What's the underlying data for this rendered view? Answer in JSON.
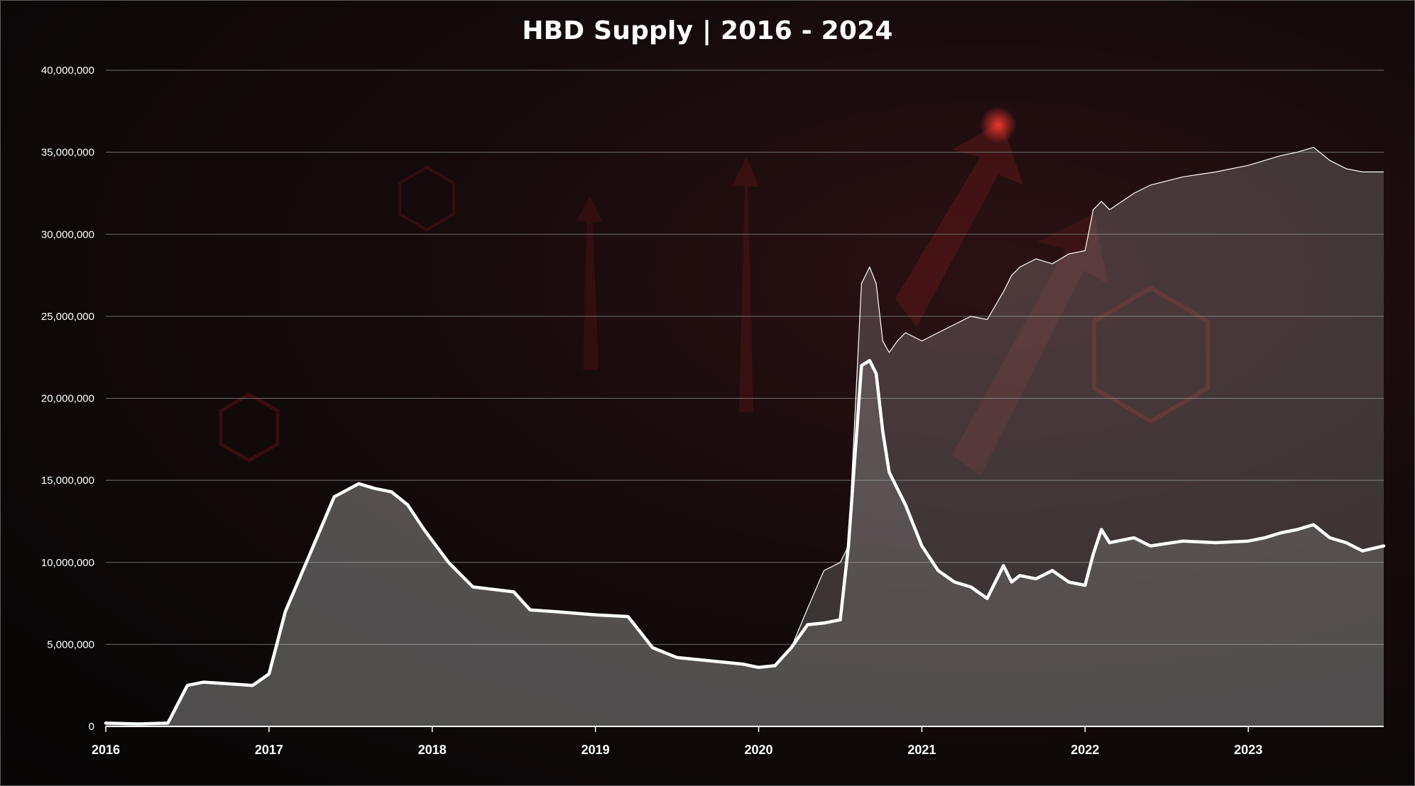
{
  "chart_data": {
    "type": "area",
    "title": "HBD Supply | 2016 - 2024",
    "xlabel": "",
    "ylabel": "",
    "ylim": [
      0,
      40000000
    ],
    "xlim": [
      2016.0,
      2023.83
    ],
    "y_ticks": [
      "0",
      "5,000,000",
      "10,000,000",
      "15,000,000",
      "20,000,000",
      "25,000,000",
      "30,000,000",
      "35,000,000",
      "40,000,000"
    ],
    "y_tick_values": [
      0,
      5000000,
      10000000,
      15000000,
      20000000,
      25000000,
      30000000,
      35000000,
      40000000
    ],
    "x_ticks": [
      "2016",
      "2017",
      "2018",
      "2019",
      "2020",
      "2021",
      "2022",
      "2023"
    ],
    "x_tick_values": [
      2016,
      2017,
      2018,
      2019,
      2020,
      2021,
      2022,
      2023
    ],
    "grid": true,
    "colors": {
      "series_line": "#ffffff",
      "area_fill": "#cfcfcf",
      "grid": "#6e6e6e",
      "background": "#120809"
    },
    "series": [
      {
        "style": "thin-line-area",
        "x": [
          2016.0,
          2016.2,
          2016.38,
          2016.5,
          2016.6,
          2016.75,
          2016.9,
          2017.0,
          2017.1,
          2017.25,
          2017.4,
          2017.55,
          2017.65,
          2017.75,
          2017.85,
          2017.95,
          2018.1,
          2018.25,
          2018.5,
          2018.6,
          2018.75,
          2019.0,
          2019.2,
          2019.35,
          2019.5,
          2019.7,
          2019.9,
          2020.0,
          2020.1,
          2020.2,
          2020.3,
          2020.4,
          2020.5,
          2020.55,
          2020.63,
          2020.68,
          2020.72,
          2020.76,
          2020.8,
          2020.85,
          2020.9,
          2021.0,
          2021.1,
          2021.2,
          2021.3,
          2021.4,
          2021.5,
          2021.55,
          2021.6,
          2021.7,
          2021.8,
          2021.9,
          2022.0,
          2022.05,
          2022.1,
          2022.15,
          2022.3,
          2022.4,
          2022.6,
          2022.8,
          2023.0,
          2023.1,
          2023.2,
          2023.3,
          2023.4,
          2023.5,
          2023.6,
          2023.7,
          2023.83
        ],
        "y": [
          200000,
          150000,
          200000,
          2500000,
          2700000,
          2600000,
          2500000,
          3200000,
          7000000,
          10500000,
          14000000,
          14800000,
          14500000,
          14300000,
          13500000,
          12000000,
          10000000,
          8500000,
          8200000,
          7100000,
          7000000,
          6800000,
          6700000,
          4800000,
          4200000,
          4000000,
          3800000,
          3600000,
          3700000,
          4800000,
          7200000,
          9500000,
          10000000,
          11000000,
          27000000,
          28000000,
          27000000,
          23500000,
          22800000,
          23500000,
          24000000,
          23500000,
          24000000,
          24500000,
          25000000,
          24800000,
          26500000,
          27500000,
          28000000,
          28500000,
          28200000,
          28800000,
          29000000,
          31500000,
          32000000,
          31500000,
          32500000,
          33000000,
          33500000,
          33800000,
          34200000,
          34500000,
          34800000,
          35000000,
          35300000,
          34500000,
          34000000,
          33800000,
          33800000
        ]
      },
      {
        "style": "thick-line",
        "x": [
          2016.0,
          2016.2,
          2016.38,
          2016.5,
          2016.6,
          2016.75,
          2016.9,
          2017.0,
          2017.1,
          2017.25,
          2017.4,
          2017.55,
          2017.65,
          2017.75,
          2017.85,
          2017.95,
          2018.1,
          2018.25,
          2018.5,
          2018.6,
          2018.75,
          2019.0,
          2019.2,
          2019.35,
          2019.5,
          2019.7,
          2019.9,
          2020.0,
          2020.1,
          2020.2,
          2020.3,
          2020.4,
          2020.5,
          2020.55,
          2020.63,
          2020.68,
          2020.72,
          2020.76,
          2020.8,
          2020.85,
          2020.9,
          2021.0,
          2021.1,
          2021.2,
          2021.3,
          2021.4,
          2021.5,
          2021.55,
          2021.6,
          2021.7,
          2021.8,
          2021.9,
          2022.0,
          2022.05,
          2022.1,
          2022.15,
          2022.3,
          2022.4,
          2022.6,
          2022.8,
          2023.0,
          2023.1,
          2023.2,
          2023.3,
          2023.4,
          2023.5,
          2023.6,
          2023.7,
          2023.83
        ],
        "y": [
          200000,
          150000,
          200000,
          2500000,
          2700000,
          2600000,
          2500000,
          3200000,
          7000000,
          10500000,
          14000000,
          14800000,
          14500000,
          14300000,
          13500000,
          12000000,
          10000000,
          8500000,
          8200000,
          7100000,
          7000000,
          6800000,
          6700000,
          4800000,
          4200000,
          4000000,
          3800000,
          3600000,
          3700000,
          4800000,
          6200000,
          6300000,
          6500000,
          11000000,
          22000000,
          22300000,
          21500000,
          18000000,
          15500000,
          14500000,
          13500000,
          11000000,
          9500000,
          8800000,
          8500000,
          7800000,
          9800000,
          8800000,
          9200000,
          9000000,
          9500000,
          8800000,
          8600000,
          10500000,
          12000000,
          11200000,
          11500000,
          11000000,
          11300000,
          11200000,
          11300000,
          11500000,
          11800000,
          12000000,
          12300000,
          11500000,
          11200000,
          10700000,
          11000000
        ]
      }
    ]
  }
}
